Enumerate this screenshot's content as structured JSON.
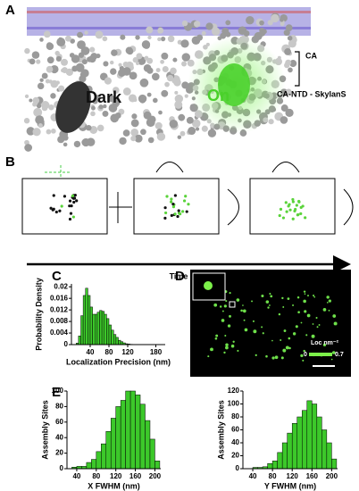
{
  "labels": {
    "a": "A",
    "b": "B",
    "c": "C",
    "d": "D",
    "e": "E",
    "ca": "CA",
    "dark": "Dark",
    "on": "On",
    "skylan": "CA-NTD - SkylanS",
    "time": "Time",
    "loc": "Loc nm⁻²",
    "cmin": "0",
    "cmax": "0.7"
  },
  "chart_data": [
    {
      "type": "histogram",
      "color": "#3cc82a",
      "ylabel": "Probability Density",
      "xlabel": "Localization Precision (nm)",
      "bins": [
        10,
        15,
        20,
        25,
        30,
        35,
        40,
        45,
        50,
        55,
        60,
        65,
        70,
        75,
        80,
        85,
        90,
        95,
        100,
        105,
        110,
        115,
        120,
        125,
        130
      ],
      "values": [
        0.0005,
        0.003,
        0.01,
        0.017,
        0.0195,
        0.017,
        0.013,
        0.0105,
        0.0105,
        0.0112,
        0.0118,
        0.0115,
        0.0105,
        0.009,
        0.0068,
        0.005,
        0.0035,
        0.0025,
        0.0015,
        0.001,
        0.0006,
        0.0003,
        0.0002,
        0.0001
      ],
      "xlim": [
        0,
        200
      ],
      "xticks": [
        40,
        80,
        120,
        180
      ],
      "ylim": [
        0,
        0.021
      ],
      "yticks": [
        0,
        0.004,
        0.008,
        0.012,
        0.016,
        0.02
      ]
    },
    {
      "type": "histogram",
      "color": "#3cc82a",
      "ylabel": "Assembly Sites",
      "xlabel": "X FWHM (nm)",
      "bins": [
        30,
        40,
        50,
        60,
        70,
        80,
        90,
        100,
        110,
        120,
        130,
        140,
        150,
        160,
        170,
        180,
        190,
        200,
        210
      ],
      "values": [
        2,
        3,
        3,
        8,
        12,
        22,
        32,
        48,
        65,
        80,
        88,
        100,
        100,
        95,
        83,
        62,
        38,
        10
      ],
      "xlim": [
        20,
        212
      ],
      "xticks": [
        40,
        80,
        120,
        160,
        200
      ],
      "ylim": [
        0,
        100
      ],
      "yticks": [
        0,
        20,
        40,
        60,
        80,
        100
      ]
    },
    {
      "type": "histogram",
      "color": "#3cc82a",
      "ylabel": "Assembly Sites",
      "xlabel": "Y FWHM (nm)",
      "bins": [
        30,
        40,
        50,
        60,
        70,
        80,
        90,
        100,
        110,
        120,
        130,
        140,
        150,
        160,
        170,
        180,
        190,
        200,
        210
      ],
      "values": [
        0,
        2,
        2,
        3,
        8,
        12,
        25,
        40,
        55,
        70,
        80,
        90,
        105,
        100,
        80,
        60,
        40,
        15
      ],
      "xlim": [
        20,
        212
      ],
      "xticks": [
        40,
        80,
        120,
        160,
        200
      ],
      "ylim": [
        0,
        120
      ],
      "yticks": [
        0,
        20,
        40,
        60,
        80,
        100,
        120
      ]
    }
  ]
}
